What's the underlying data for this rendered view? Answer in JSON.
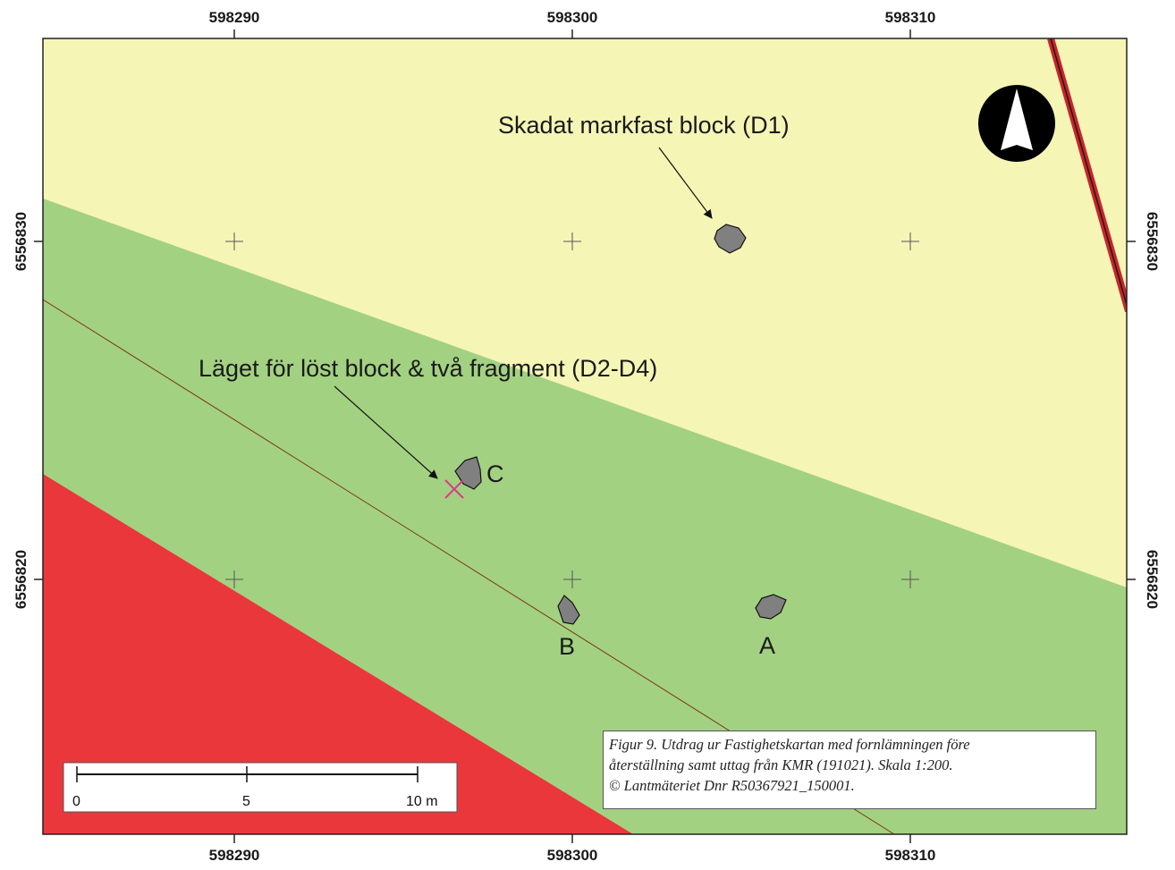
{
  "axes": {
    "x_labels": [
      "598290",
      "598300",
      "598310"
    ],
    "y_labels": [
      "6556830",
      "6556820"
    ]
  },
  "zones": {
    "colors": {
      "yellow": "#f5f5b6",
      "green": "#a3d182",
      "red": "#ea373c",
      "road": "#c8252a"
    }
  },
  "annotations": {
    "d1": "Skadat markfast block (D1)",
    "loose": "Läget för löst block & två fragment (D2-D4)"
  },
  "blocks": {
    "a": "A",
    "b": "B",
    "c": "C"
  },
  "scale_bar": {
    "ticks": [
      "0",
      "5",
      "10 m"
    ]
  },
  "caption": {
    "line1": "Figur 9. Utdrag ur Fastighetskartan med fornlämningen före",
    "line2": "återställning samt uttag från KMR (191021). Skala 1:200.",
    "line3": "© Lantmäteriet Dnr R50367921_150001."
  },
  "icons": {
    "north_arrow": "north-arrow-icon",
    "location_marker": "x-marker-icon"
  }
}
